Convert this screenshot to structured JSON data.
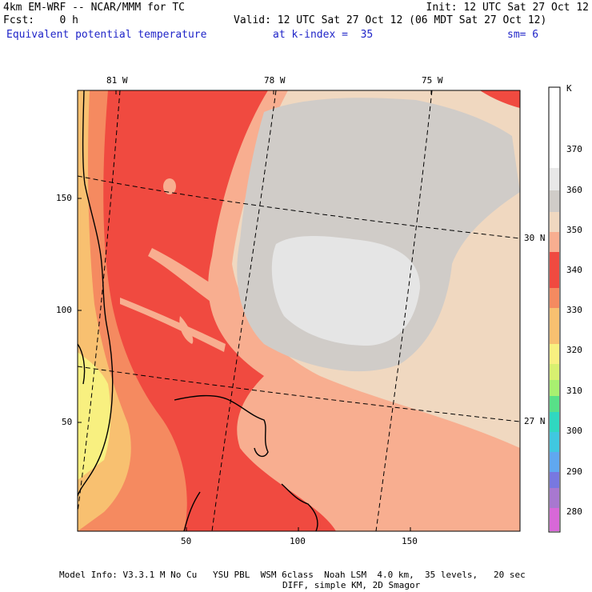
{
  "header": {
    "left_line1": "4km EM-WRF -- NCAR/MMM for TC",
    "left_line2": "Fcst:    0 h",
    "right_line1": "Init: 12 UTC Sat 27 Oct 12",
    "right_line2": "Valid: 12 UTC Sat 27 Oct 12 (06 MDT Sat 27 Oct 12)",
    "field_name": "Equivalent potential temperature",
    "k_index": "at k-index =  35",
    "smoothing": "sm= 6"
  },
  "map": {
    "lon_labels": [
      "81 W",
      "78 W",
      "75 W"
    ],
    "lat_labels": [
      "30 N",
      "27 N"
    ],
    "y_ticks": [
      "150",
      "100",
      "50"
    ],
    "x_ticks": [
      "50",
      "100",
      "150"
    ]
  },
  "colorbar": {
    "unit": "K",
    "labels": [
      "370",
      "360",
      "350",
      "340",
      "330",
      "320",
      "310",
      "300",
      "290",
      "280"
    ],
    "colors": [
      "#ffffff",
      "#f4f4f4",
      "#e5e5e5",
      "#d0ccc8",
      "#f0d8c0",
      "#f8ae90",
      "#f04a40",
      "#f58a60",
      "#f8c070",
      "#f8f080",
      "#b8f070",
      "#58e088",
      "#30d8c0",
      "#60a8f0",
      "#7878e0",
      "#a878d0",
      "#d868d8"
    ]
  },
  "footer": {
    "line1": "Model Info: V3.3.1 M No Cu   YSU PBL  WSM 6class  Noah LSM  4.0 km,  35 levels,   20 sec",
    "line2": "DIFF, simple KM, 2D Smagor"
  }
}
